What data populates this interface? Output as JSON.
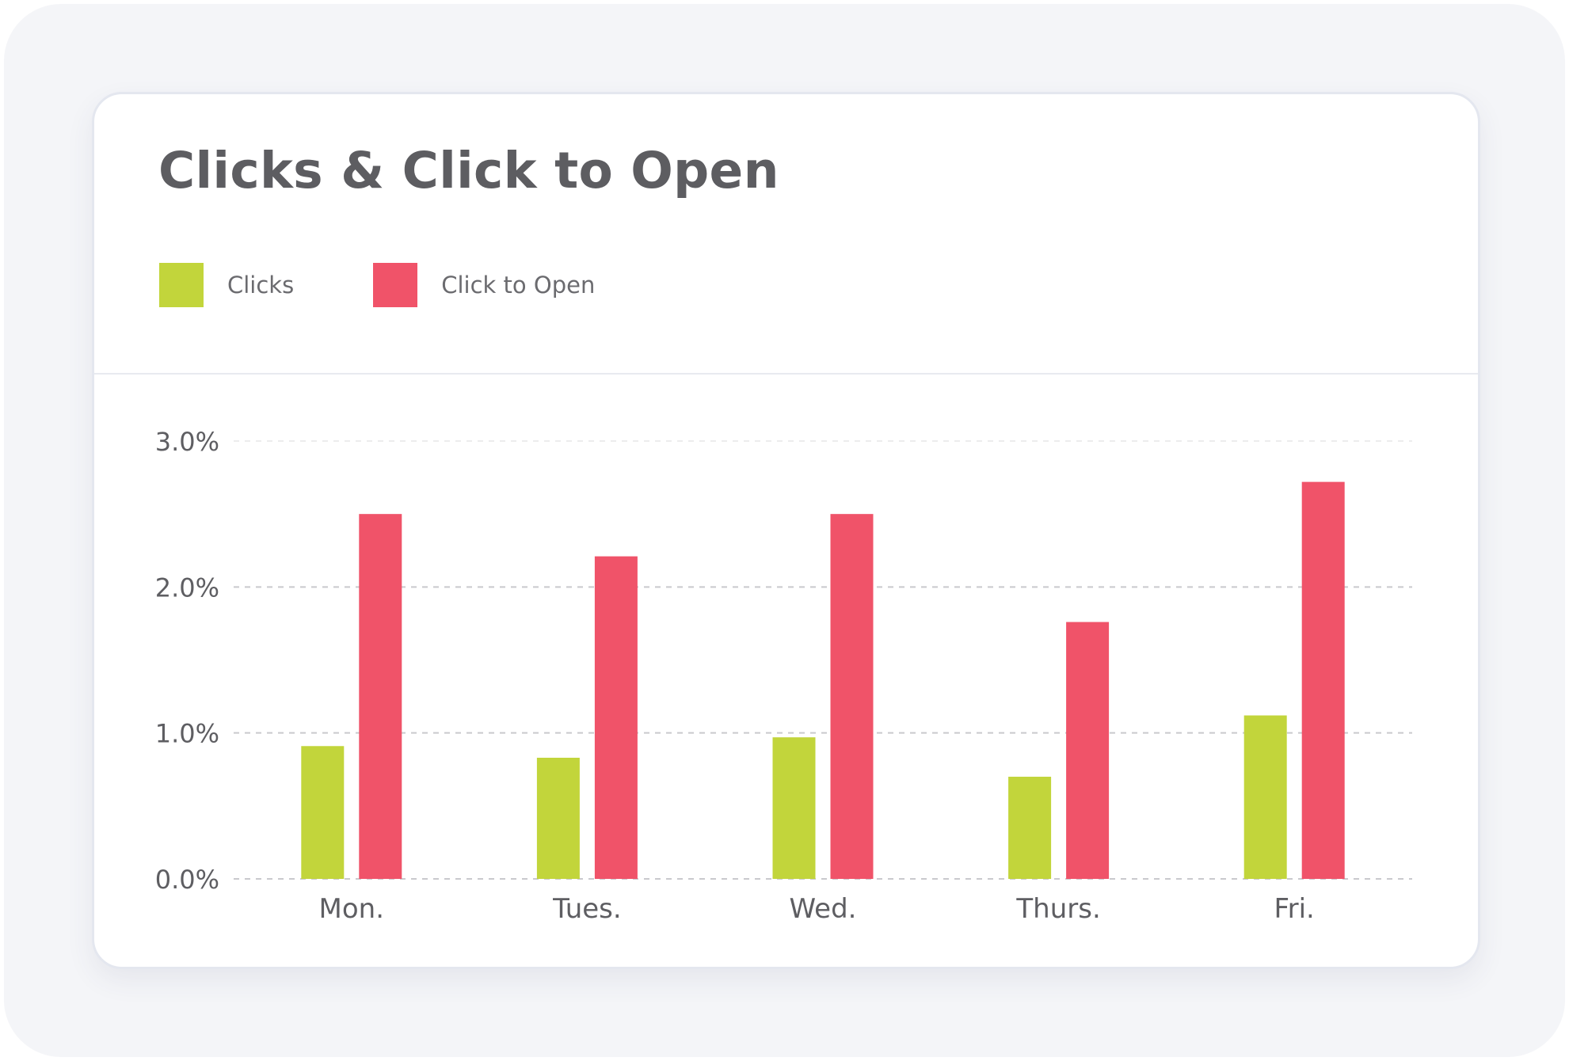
{
  "title": "Clicks & Click to Open",
  "legend": [
    {
      "label": "Clicks",
      "color": "#c2d53b"
    },
    {
      "label": "Click to Open",
      "color": "#f05369"
    }
  ],
  "chart_data": {
    "type": "bar",
    "title": "Clicks & Click to Open",
    "categories": [
      "Mon.",
      "Tues.",
      "Wed.",
      "Thurs.",
      "Fri."
    ],
    "series": [
      {
        "name": "Clicks",
        "color": "#c2d53b",
        "values": [
          0.91,
          0.83,
          0.97,
          0.7,
          1.12
        ]
      },
      {
        "name": "Click to Open",
        "color": "#f05369",
        "values": [
          2.5,
          2.21,
          2.5,
          1.76,
          2.72
        ]
      }
    ],
    "yticks": [
      "0.0%",
      "1.0%",
      "2.0%",
      "3.0%"
    ],
    "ytick_values": [
      0,
      1,
      2,
      3
    ],
    "ylim": [
      0,
      3
    ],
    "xlabel": "",
    "ylabel": "",
    "grid": true,
    "legend_position": "top-left"
  }
}
